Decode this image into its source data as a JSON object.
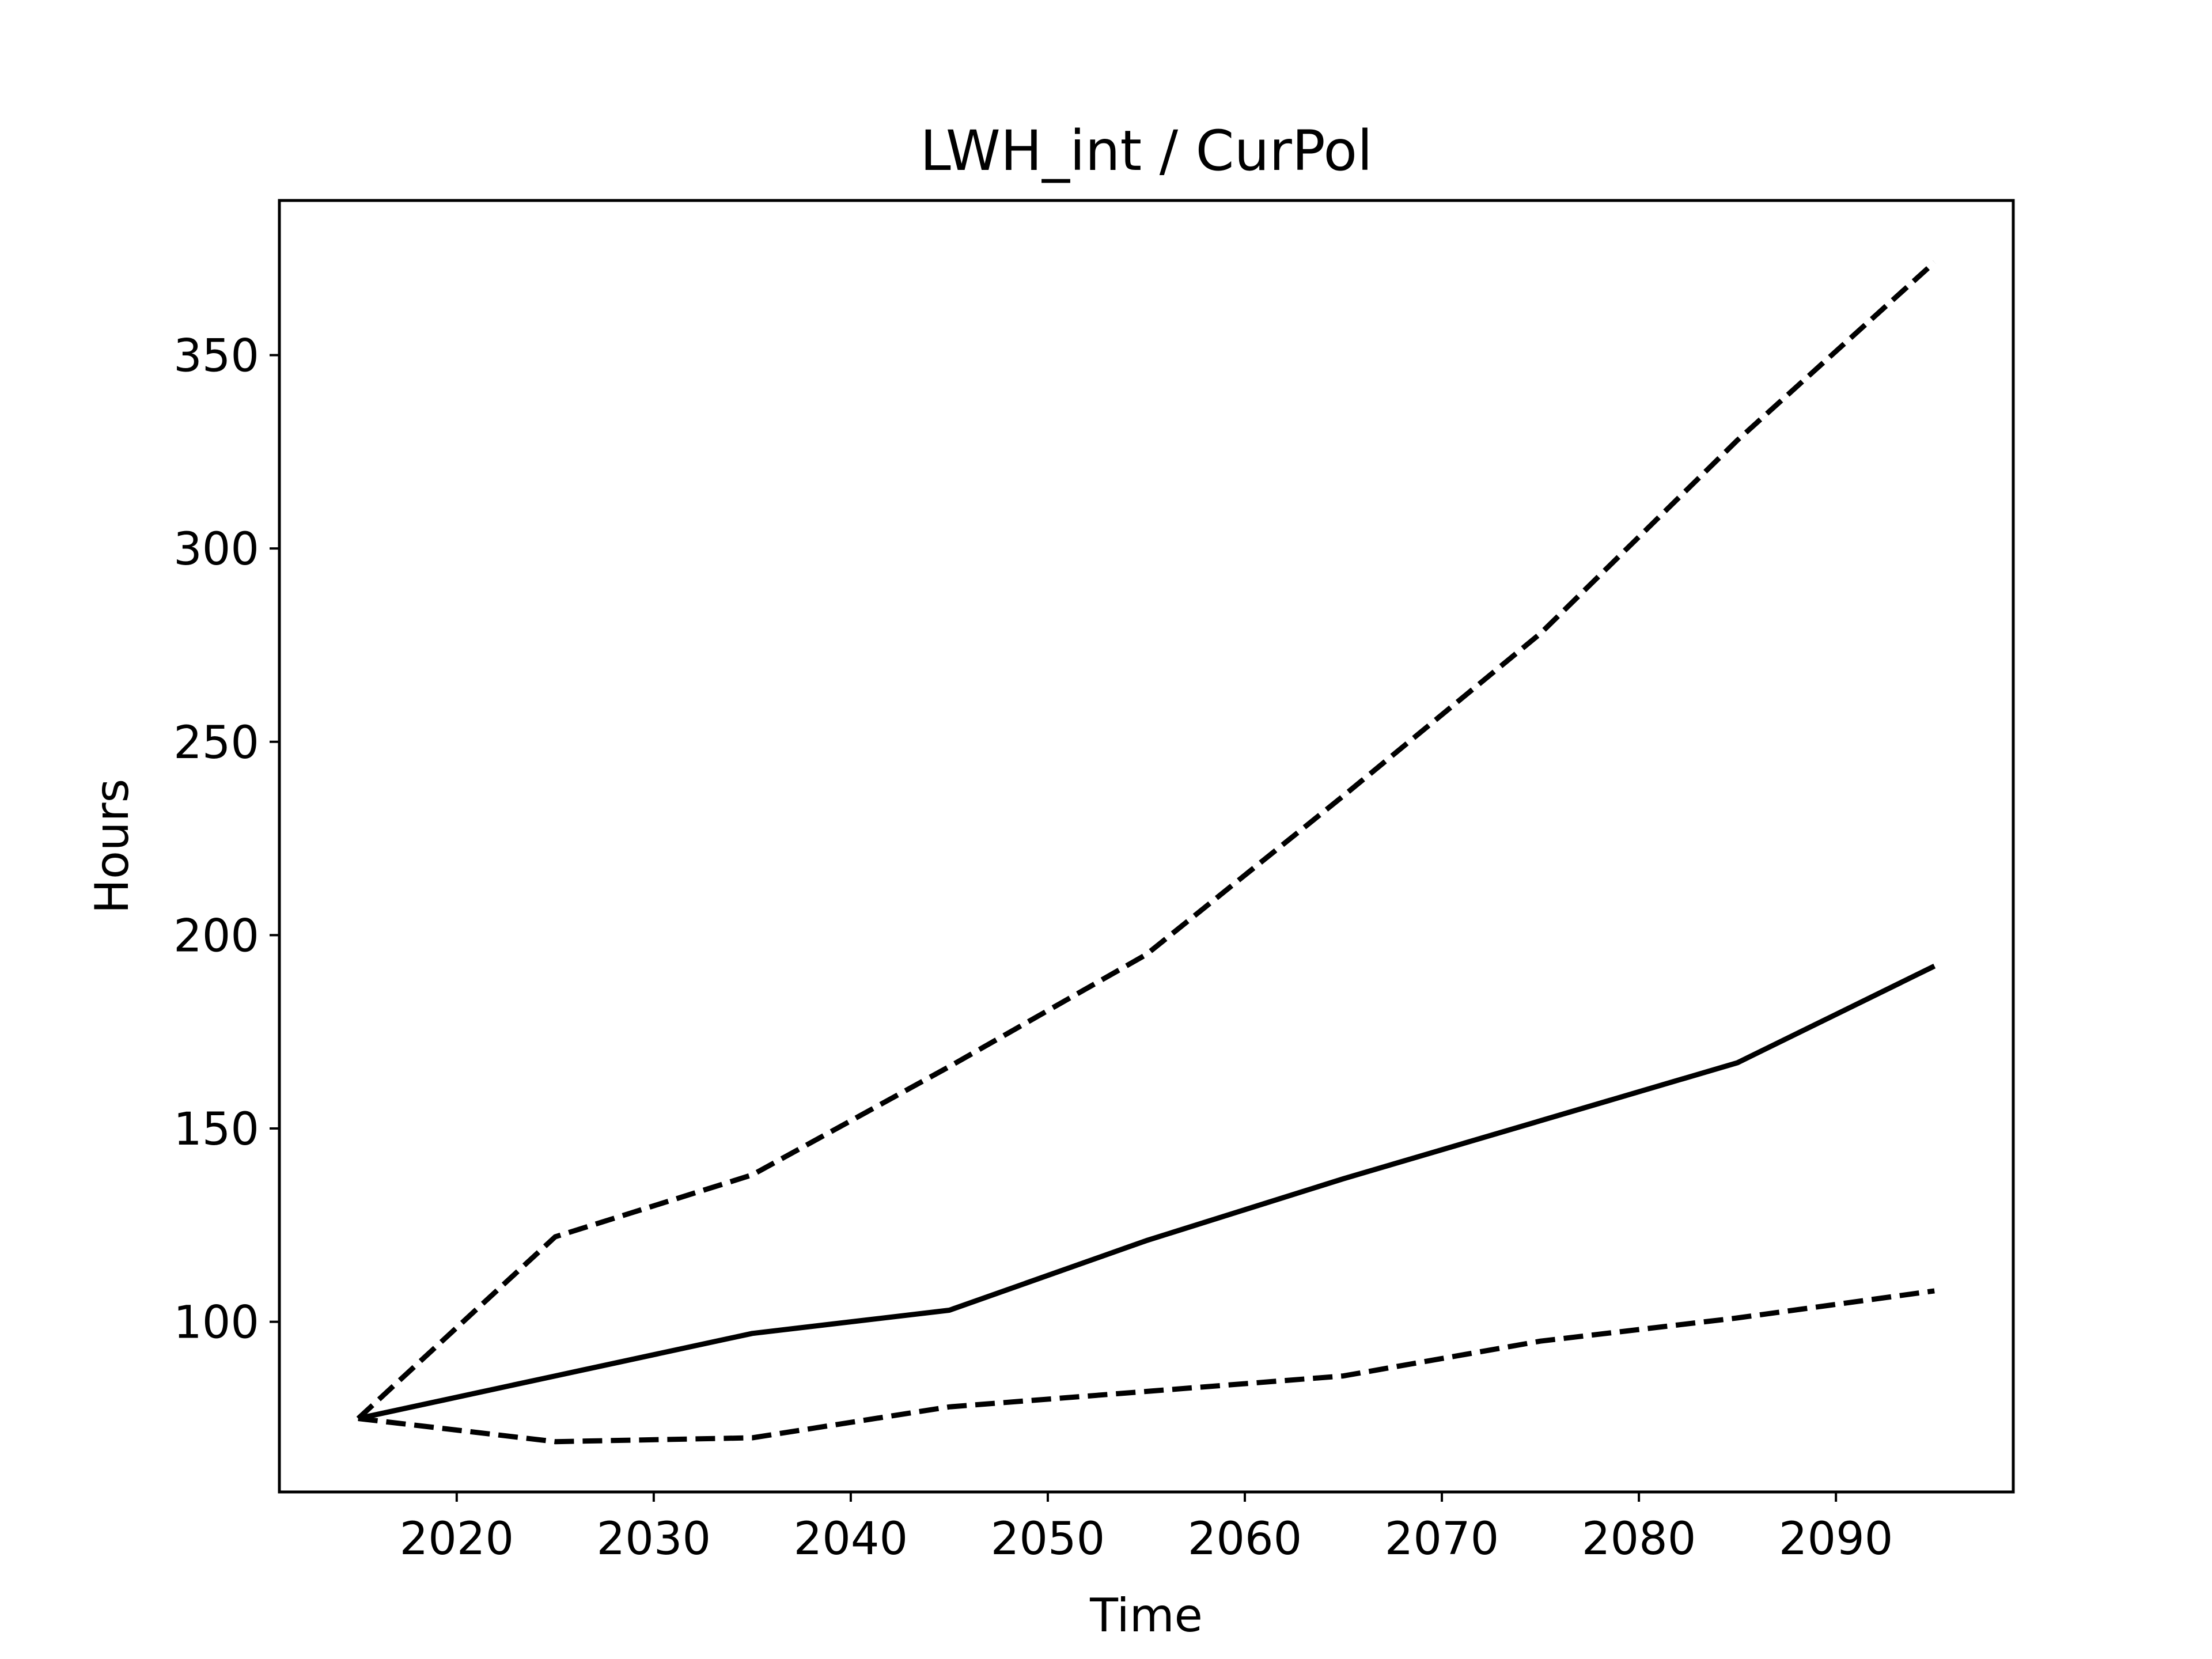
{
  "chart_data": {
    "type": "line",
    "title": "LWH_int / CurPol",
    "xlabel": "Time",
    "ylabel": "Hours",
    "xlim": [
      2011,
      2099
    ],
    "ylim": [
      56,
      390
    ],
    "x_ticks": [
      2020,
      2030,
      2040,
      2050,
      2060,
      2070,
      2080,
      2090
    ],
    "y_ticks": [
      100,
      150,
      200,
      250,
      300,
      350
    ],
    "grid": false,
    "legend": "none",
    "line_color": "#000000",
    "series": [
      {
        "style": "dashed",
        "x": [
          2015,
          2025,
          2035,
          2045,
          2055,
          2065,
          2075,
          2085,
          2095
        ],
        "y": [
          75,
          122,
          138,
          166,
          195,
          236,
          278,
          328,
          374
        ]
      },
      {
        "style": "solid",
        "x": [
          2015,
          2025,
          2035,
          2045,
          2055,
          2065,
          2075,
          2085,
          2095
        ],
        "y": [
          75,
          86,
          97,
          103,
          121,
          137,
          152,
          167,
          192
        ]
      },
      {
        "style": "dashed",
        "x": [
          2015,
          2025,
          2035,
          2045,
          2055,
          2065,
          2075,
          2085,
          2095
        ],
        "y": [
          75,
          69,
          70,
          78,
          82,
          86,
          95,
          101,
          108
        ]
      }
    ]
  }
}
